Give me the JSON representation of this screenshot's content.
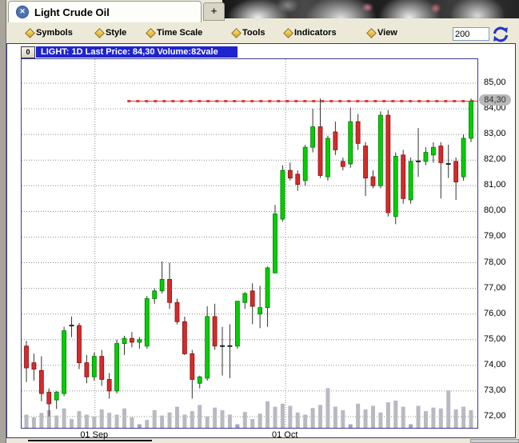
{
  "window": {
    "tab_title": "Light Crude Oil",
    "close_icon": "close-icon",
    "new_tab_label": "+"
  },
  "menu": {
    "items": [
      {
        "label": "Symbols"
      },
      {
        "label": "Style"
      },
      {
        "label": "Time Scale"
      },
      {
        "label": "Tools"
      },
      {
        "label": "Indicators"
      },
      {
        "label": "View"
      }
    ],
    "bars_value": "200",
    "refresh_icon": "refresh-icon"
  },
  "chart": {
    "legend_button": "0",
    "title": "LIGHT: 1D Last Price: 84,30 Volume:82vale",
    "last_price_label": "84,30"
  },
  "colors": {
    "up": "#00cf00",
    "up_border": "#007a00",
    "down": "#d52b2b",
    "down_border": "#8c0f0f",
    "wick": "#333333",
    "volume": "#b9b9c3",
    "volume_small": "#9f9fd2",
    "grid": "#8c8c8c",
    "price_line": "#e23b3b",
    "titlebar_blue": "#1f24cf"
  },
  "chart_data": {
    "type": "candlestick",
    "symbol": "LIGHT",
    "interval": "1D",
    "last_price": 84.3,
    "y_range": [
      72,
      85
    ],
    "y_ticks": [
      {
        "v": 85,
        "label": "85,00"
      },
      {
        "v": 84,
        "label": "84,00"
      },
      {
        "v": 83,
        "label": "83,00"
      },
      {
        "v": 82,
        "label": "82,00"
      },
      {
        "v": 81,
        "label": "81,00"
      },
      {
        "v": 80,
        "label": "80,00"
      },
      {
        "v": 79,
        "label": "79,00"
      },
      {
        "v": 78,
        "label": "78,00"
      },
      {
        "v": 77,
        "label": "77,00"
      },
      {
        "v": 76,
        "label": "76,00"
      },
      {
        "v": 75,
        "label": "75,00"
      },
      {
        "v": 74,
        "label": "74,00"
      },
      {
        "v": 73,
        "label": "73,00"
      },
      {
        "v": 72,
        "label": "72,00"
      }
    ],
    "month_gridlines": [
      {
        "label": "01 Sep",
        "index": 9.1
      },
      {
        "label": "01 Oct",
        "index": 34.4
      }
    ],
    "price_line": {
      "value": 84.3,
      "label": "84,30",
      "start_index": 13.4
    },
    "candles": [
      [
        74.75,
        74.95,
        73.35,
        73.9
      ],
      [
        74.1,
        74.45,
        73.4,
        73.85
      ],
      [
        73.8,
        74.35,
        72.6,
        72.9
      ],
      [
        72.95,
        73.1,
        72.0,
        72.5
      ],
      [
        72.65,
        73.0,
        72.3,
        72.95
      ],
      [
        72.9,
        75.5,
        72.8,
        75.35
      ],
      [
        75.5,
        75.9,
        75.1,
        75.55
      ],
      [
        75.55,
        75.65,
        73.85,
        74.1
      ],
      [
        74.1,
        74.4,
        73.3,
        73.55
      ],
      [
        73.55,
        74.5,
        73.4,
        74.35
      ],
      [
        74.35,
        74.6,
        73.2,
        73.45
      ],
      [
        73.45,
        73.7,
        72.7,
        73.0
      ],
      [
        73.0,
        75.0,
        72.9,
        74.85
      ],
      [
        74.85,
        75.15,
        74.4,
        75.05
      ],
      [
        75.05,
        75.3,
        74.7,
        74.9
      ],
      [
        74.9,
        75.1,
        74.65,
        75.0
      ],
      [
        74.75,
        76.7,
        74.65,
        76.6
      ],
      [
        76.6,
        77.0,
        76.4,
        76.9
      ],
      [
        76.9,
        78.05,
        76.8,
        77.35
      ],
      [
        77.35,
        78.0,
        76.2,
        76.45
      ],
      [
        76.45,
        76.6,
        75.6,
        75.7
      ],
      [
        75.7,
        75.9,
        74.4,
        74.45
      ],
      [
        74.45,
        74.6,
        72.7,
        73.45
      ],
      [
        73.3,
        73.6,
        73.1,
        73.55
      ],
      [
        73.5,
        76.3,
        73.4,
        75.9
      ],
      [
        75.9,
        76.4,
        74.6,
        74.75
      ],
      [
        74.75,
        75.5,
        73.6,
        74.75
      ],
      [
        74.75,
        75.6,
        73.5,
        74.75
      ],
      [
        74.75,
        76.5,
        74.65,
        76.5
      ],
      [
        76.45,
        76.85,
        76.2,
        76.8
      ],
      [
        76.9,
        77.2,
        75.6,
        76.3
      ],
      [
        76.0,
        77.1,
        75.45,
        76.25
      ],
      [
        76.25,
        77.85,
        75.5,
        77.8
      ],
      [
        77.6,
        80.25,
        77.6,
        79.9
      ],
      [
        79.7,
        81.8,
        79.6,
        81.6
      ],
      [
        81.6,
        81.9,
        81.2,
        81.3
      ],
      [
        81.45,
        81.6,
        80.8,
        81.05
      ],
      [
        81.2,
        82.6,
        81.0,
        82.5
      ],
      [
        82.5,
        84.0,
        82.3,
        83.3
      ],
      [
        83.3,
        84.4,
        81.3,
        81.4
      ],
      [
        81.35,
        82.95,
        81.2,
        82.85
      ],
      [
        83.1,
        83.5,
        82.2,
        82.4
      ],
      [
        81.95,
        82.1,
        81.6,
        81.75
      ],
      [
        81.85,
        84.05,
        81.7,
        83.5
      ],
      [
        83.5,
        83.8,
        82.4,
        82.65
      ],
      [
        82.55,
        82.7,
        80.6,
        81.3
      ],
      [
        81.35,
        81.6,
        80.9,
        81.0
      ],
      [
        81.0,
        83.9,
        80.9,
        83.75
      ],
      [
        83.75,
        83.95,
        79.8,
        79.95
      ],
      [
        79.8,
        82.3,
        79.5,
        82.15
      ],
      [
        82.2,
        82.4,
        80.3,
        80.5
      ],
      [
        80.45,
        82.1,
        80.3,
        81.95
      ],
      [
        81.95,
        83.25,
        81.35,
        81.95
      ],
      [
        81.95,
        82.5,
        81.8,
        82.3
      ],
      [
        82.2,
        82.7,
        81.9,
        82.5
      ],
      [
        82.55,
        82.7,
        80.5,
        81.9
      ],
      [
        81.85,
        82.6,
        81.3,
        81.85
      ],
      [
        81.95,
        82.1,
        80.45,
        81.15
      ],
      [
        81.35,
        83.0,
        81.2,
        82.85
      ],
      [
        82.85,
        84.4,
        82.7,
        84.3
      ]
    ],
    "volumes": [
      30,
      24,
      34,
      40,
      28,
      44,
      20,
      38,
      30,
      26,
      42,
      34,
      30,
      44,
      24,
      8,
      18,
      40,
      28,
      35,
      48,
      30,
      38,
      52,
      26,
      46,
      40,
      30,
      8,
      36,
      20,
      32,
      60,
      48,
      55,
      50,
      35,
      30,
      45,
      52,
      90,
      48,
      40,
      8,
      55,
      42,
      50,
      35,
      58,
      62,
      48,
      8,
      50,
      38,
      46,
      44,
      85,
      42,
      48,
      40
    ]
  }
}
